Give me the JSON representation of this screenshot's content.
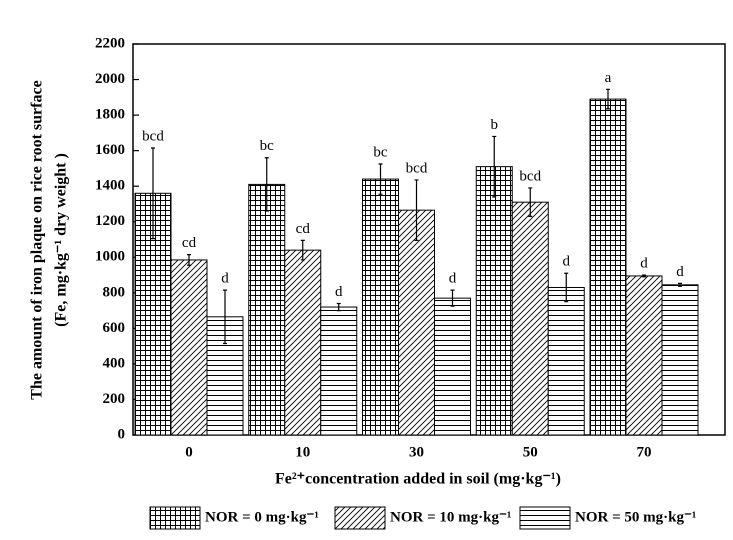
{
  "chart_data": {
    "type": "bar",
    "y_label_lines": [
      "The amount of iron plaque on rice root surface",
      "(Fe, mg·kg⁻¹ dry weight )"
    ],
    "x_label": "Fe²⁺concentration added in soil (mg·kg⁻¹)",
    "categories": [
      "0",
      "10",
      "30",
      "50",
      "70"
    ],
    "series": [
      {
        "name": "NOR = 0 mg·kg⁻¹",
        "color": "#000000",
        "hatch": "grid",
        "values": [
          1360,
          1410,
          1440,
          1510,
          1890
        ],
        "errors": [
          255,
          150,
          85,
          170,
          55
        ],
        "letters": [
          "bcd",
          "bc",
          "bc",
          "b",
          "a"
        ]
      },
      {
        "name": "NOR = 10 mg·kg⁻¹",
        "color": "#000000",
        "hatch": "diagonal",
        "values": [
          985,
          1040,
          1265,
          1310,
          895
        ],
        "errors": [
          30,
          55,
          170,
          80,
          5
        ],
        "letters": [
          "cd",
          "cd",
          "bcd",
          "bcd",
          "d"
        ]
      },
      {
        "name": "NOR = 50 mg·kg⁻¹",
        "color": "#000000",
        "hatch": "horizontal",
        "values": [
          665,
          720,
          770,
          830,
          845
        ],
        "errors": [
          150,
          20,
          45,
          80,
          8
        ],
        "letters": [
          "d",
          "d",
          "d",
          "d",
          "d"
        ]
      }
    ],
    "ylim": [
      0,
      2200
    ],
    "yticks": [
      0,
      200,
      400,
      600,
      800,
      1000,
      1200,
      1400,
      1600,
      1800,
      2000,
      2200
    ],
    "grid": false
  }
}
